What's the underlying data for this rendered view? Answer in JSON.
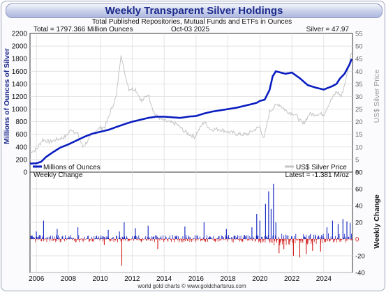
{
  "title": "Weekly Transparent Silver Holdings",
  "subtitle": "Total Published Repositories, Mutual Funds and ETFs in Ounces",
  "info": {
    "total": "Total = 1797.366 Million Ounces",
    "date": "Oct-03  2025",
    "silver": "Silver = 47.97",
    "latest": "Latest = -1.381 M/oz"
  },
  "footer": "world gold charts © www.goldchartsrus.com",
  "colors": {
    "holdings": "#0a1dbf",
    "price": "#c4c4c4",
    "positive": "#0a1dbf",
    "negative": "#d01616",
    "title": "#1c2a8c"
  },
  "chart_data": [
    {
      "type": "line",
      "ylabel": "Millions of Ounces of Silver",
      "y2label": "US$ Silver Price",
      "ylim": [
        0,
        2200
      ],
      "y2lim": [
        0,
        55
      ],
      "yticks": [
        "0",
        "200",
        "400",
        "600",
        "800",
        "1000",
        "1200",
        "1400",
        "1600",
        "1800",
        "2000",
        "2200"
      ],
      "y2ticks": [
        "0",
        "5",
        "10",
        "15",
        "20",
        "25",
        "30",
        "35",
        "40",
        "45",
        "50",
        "55"
      ],
      "xlim": [
        2005.6,
        2025.8
      ],
      "xticks": [
        "2006",
        "2008",
        "2010",
        "2012",
        "2014",
        "2016",
        "2018",
        "2020",
        "2022",
        "2024"
      ],
      "grid": true,
      "legend_position": "bottom",
      "series": [
        {
          "name": "Millions of Ounces",
          "axis": "left",
          "x": [
            2005.6,
            2006.0,
            2006.3,
            2006.6,
            2007.0,
            2007.5,
            2008.0,
            2008.5,
            2009.0,
            2009.5,
            2010.0,
            2010.5,
            2011.0,
            2011.5,
            2012.0,
            2012.5,
            2013.0,
            2013.5,
            2014.0,
            2014.5,
            2015.0,
            2015.5,
            2016.0,
            2016.5,
            2017.0,
            2017.5,
            2018.0,
            2018.5,
            2019.0,
            2019.5,
            2019.8,
            2020.0,
            2020.3,
            2020.6,
            2020.8,
            2021.0,
            2021.3,
            2021.6,
            2022.0,
            2022.5,
            2023.0,
            2023.5,
            2024.0,
            2024.5,
            2024.8,
            2025.0,
            2025.3,
            2025.6,
            2025.75
          ],
          "values": [
            135,
            140,
            165,
            240,
            310,
            390,
            440,
            500,
            560,
            610,
            640,
            670,
            715,
            760,
            800,
            830,
            860,
            880,
            880,
            870,
            860,
            880,
            890,
            930,
            960,
            980,
            1000,
            1020,
            1050,
            1080,
            1100,
            1130,
            1150,
            1300,
            1520,
            1600,
            1580,
            1560,
            1580,
            1490,
            1380,
            1340,
            1310,
            1360,
            1400,
            1480,
            1560,
            1700,
            1797
          ]
        },
        {
          "name": "US$ Silver Price",
          "axis": "right",
          "x": [
            2005.6,
            2006.0,
            2006.4,
            2006.8,
            2007.3,
            2007.8,
            2008.2,
            2008.6,
            2008.9,
            2009.3,
            2009.8,
            2010.3,
            2010.7,
            2011.0,
            2011.3,
            2011.5,
            2011.8,
            2012.2,
            2012.6,
            2013.0,
            2013.4,
            2013.8,
            2014.2,
            2014.8,
            2015.3,
            2015.9,
            2016.5,
            2016.9,
            2017.5,
            2018.0,
            2018.7,
            2019.2,
            2019.7,
            2020.0,
            2020.25,
            2020.6,
            2020.9,
            2021.2,
            2021.7,
            2022.2,
            2022.7,
            2023.1,
            2023.6,
            2024.0,
            2024.4,
            2024.8,
            2025.1,
            2025.4,
            2025.75
          ],
          "values": [
            8,
            9,
            13,
            12,
            13,
            14,
            17,
            15,
            10,
            13,
            17,
            18,
            25,
            30,
            47,
            40,
            33,
            33,
            28,
            31,
            23,
            21,
            20,
            19,
            16,
            14,
            20,
            17,
            17,
            16,
            15,
            15,
            17,
            18,
            13,
            24,
            26,
            27,
            24,
            23,
            19,
            23,
            23,
            23,
            28,
            32,
            30,
            37,
            47.97
          ]
        }
      ]
    },
    {
      "type": "bar",
      "title": "Weekly Change",
      "ylabel": "Weekly Change",
      "ylim": [
        -40,
        80
      ],
      "yticks": [
        "-40",
        "-20",
        "0",
        "20",
        "40",
        "60",
        "80"
      ],
      "xlim": [
        2005.6,
        2025.8
      ],
      "spikes": [
        {
          "x": 2006.0,
          "value": 9
        },
        {
          "x": 2006.45,
          "value": 22
        },
        {
          "x": 2007.3,
          "value": 12
        },
        {
          "x": 2008.6,
          "value": 14
        },
        {
          "x": 2010.25,
          "value": -7
        },
        {
          "x": 2010.5,
          "value": 11
        },
        {
          "x": 2011.2,
          "value": 9
        },
        {
          "x": 2011.35,
          "value": -32
        },
        {
          "x": 2011.5,
          "value": 20
        },
        {
          "x": 2012.2,
          "value": 13
        },
        {
          "x": 2013.0,
          "value": 16
        },
        {
          "x": 2013.6,
          "value": -12
        },
        {
          "x": 2015.3,
          "value": 15
        },
        {
          "x": 2016.5,
          "value": 20
        },
        {
          "x": 2017.9,
          "value": 12
        },
        {
          "x": 2019.5,
          "value": 14
        },
        {
          "x": 2019.8,
          "value": 30
        },
        {
          "x": 2020.0,
          "value": 22
        },
        {
          "x": 2020.35,
          "value": 42
        },
        {
          "x": 2020.55,
          "value": 57
        },
        {
          "x": 2020.7,
          "value": 36
        },
        {
          "x": 2020.85,
          "value": 66
        },
        {
          "x": 2021.0,
          "value": 20
        },
        {
          "x": 2021.2,
          "value": -17
        },
        {
          "x": 2021.5,
          "value": -12
        },
        {
          "x": 2022.1,
          "value": -20
        },
        {
          "x": 2022.5,
          "value": -22
        },
        {
          "x": 2022.9,
          "value": -18
        },
        {
          "x": 2023.3,
          "value": -14
        },
        {
          "x": 2023.8,
          "value": -15
        },
        {
          "x": 2024.2,
          "value": 14
        },
        {
          "x": 2024.55,
          "value": 22
        },
        {
          "x": 2024.9,
          "value": 18
        },
        {
          "x": 2025.2,
          "value": 24
        },
        {
          "x": 2025.45,
          "value": 21
        },
        {
          "x": 2025.65,
          "value": 19
        },
        {
          "x": 2025.75,
          "value": -1.381
        }
      ]
    }
  ]
}
